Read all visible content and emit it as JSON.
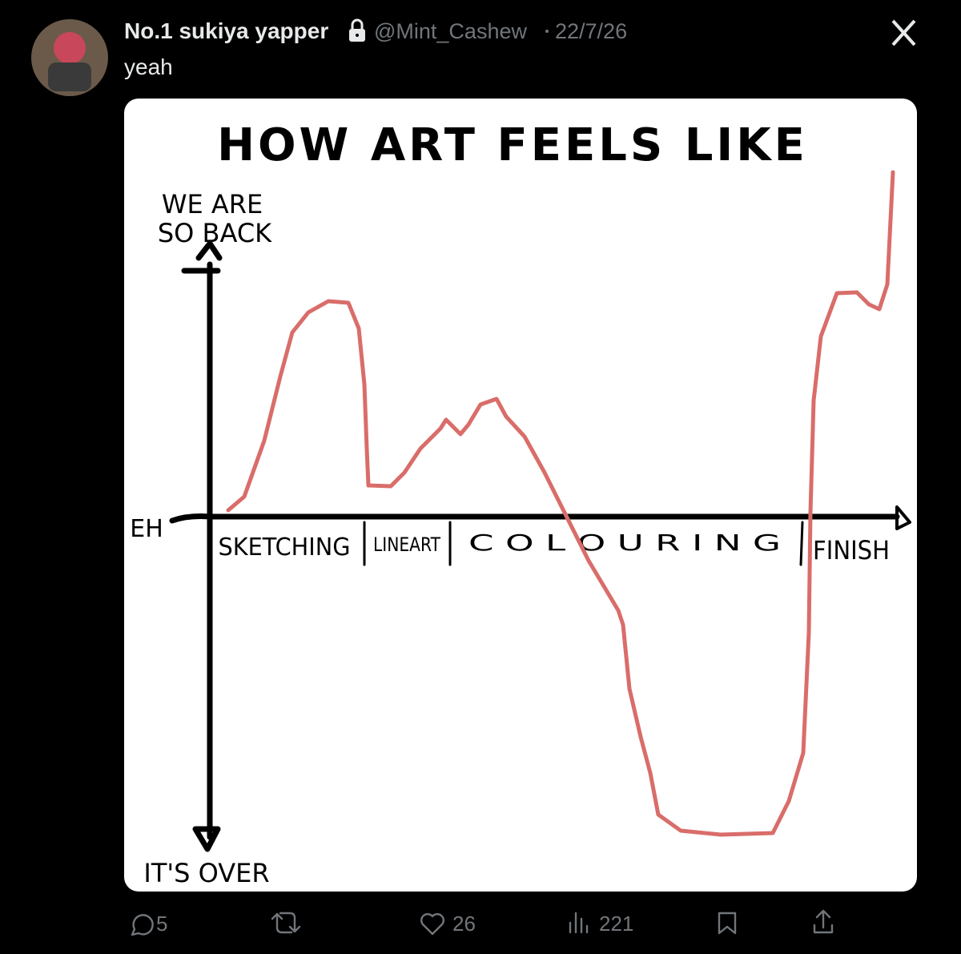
{
  "tweet": {
    "author": "No.1 sukiya yapper",
    "handle": "@Mint_Cashew",
    "date": "22/7/26",
    "text": "yeah"
  },
  "image": {
    "title": "HOW ART FEELS LIKE",
    "y_top": [
      "WE ARE",
      "SO BACK"
    ],
    "y_mid": "EH",
    "y_bottom": "IT'S OVER",
    "stages": [
      "SKETCHING",
      "LINEART",
      "C O L O U R I N G",
      "FINISH"
    ]
  },
  "actions": {
    "replies": 5,
    "likes": 26,
    "views": 221
  }
}
